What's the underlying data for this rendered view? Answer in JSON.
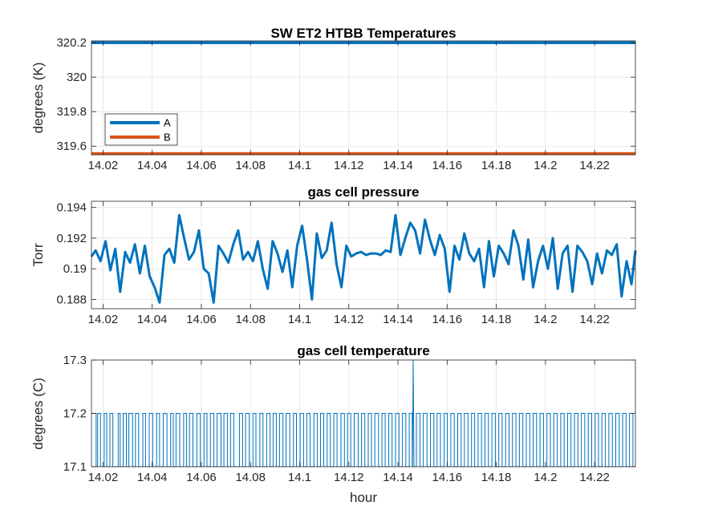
{
  "chart_data": [
    {
      "type": "line",
      "title": "SW ET2 HTBB Temperatures",
      "xlabel": "",
      "ylabel": "degrees (K)",
      "xlim": [
        14.0153,
        14.2366
      ],
      "ylim": [
        319.55,
        320.21
      ],
      "x_ticks": [
        "14.02",
        "14.04",
        "14.06",
        "14.08",
        "14.1",
        "14.12",
        "14.14",
        "14.16",
        "14.18",
        "14.2",
        "14.22"
      ],
      "y_ticks": [
        "319.6",
        "319.8",
        "320",
        "320.2"
      ],
      "grid": true,
      "legend": "bottom-left",
      "series": [
        {
          "name": "A",
          "color": "#0072BD",
          "x": [
            14.0153,
            14.2366
          ],
          "values": [
            320.2,
            320.2
          ]
        },
        {
          "name": "B",
          "color": "#D95319",
          "x": [
            14.0153,
            14.2366
          ],
          "values": [
            319.557,
            319.557
          ]
        }
      ]
    },
    {
      "type": "line",
      "title": "gas cell pressure",
      "xlabel": "",
      "ylabel": "Torr",
      "xlim": [
        14.0153,
        14.2366
      ],
      "ylim": [
        0.1874,
        0.1944
      ],
      "x_ticks": [
        "14.02",
        "14.04",
        "14.06",
        "14.08",
        "14.1",
        "14.12",
        "14.14",
        "14.16",
        "14.18",
        "14.2",
        "14.22"
      ],
      "y_ticks": [
        "0.188",
        "0.19",
        "0.192",
        "0.194"
      ],
      "grid": true,
      "series": [
        {
          "color": "#0072BD",
          "x": [
            14.0153,
            14.017,
            14.019,
            14.021,
            14.023,
            14.025,
            14.027,
            14.029,
            14.031,
            14.033,
            14.035,
            14.037,
            14.039,
            14.041,
            14.043,
            14.045,
            14.047,
            14.049,
            14.051,
            14.053,
            14.055,
            14.057,
            14.059,
            14.061,
            14.063,
            14.065,
            14.067,
            14.069,
            14.071,
            14.073,
            14.075,
            14.077,
            14.079,
            14.081,
            14.083,
            14.085,
            14.087,
            14.089,
            14.091,
            14.093,
            14.095,
            14.097,
            14.099,
            14.101,
            14.103,
            14.105,
            14.107,
            14.109,
            14.111,
            14.113,
            14.115,
            14.117,
            14.119,
            14.121,
            14.123,
            14.125,
            14.127,
            14.129,
            14.131,
            14.133,
            14.135,
            14.137,
            14.139,
            14.141,
            14.143,
            14.145,
            14.147,
            14.149,
            14.151,
            14.153,
            14.155,
            14.157,
            14.159,
            14.161,
            14.163,
            14.165,
            14.167,
            14.169,
            14.171,
            14.173,
            14.175,
            14.177,
            14.179,
            14.181,
            14.183,
            14.185,
            14.187,
            14.189,
            14.191,
            14.193,
            14.195,
            14.197,
            14.199,
            14.201,
            14.203,
            14.205,
            14.207,
            14.209,
            14.211,
            14.213,
            14.215,
            14.217,
            14.219,
            14.221,
            14.223,
            14.225,
            14.227,
            14.229,
            14.231,
            14.233,
            14.235,
            14.2366
          ],
          "values": [
            0.1908,
            0.1912,
            0.1905,
            0.1918,
            0.1899,
            0.1913,
            0.1885,
            0.1911,
            0.1904,
            0.1916,
            0.1897,
            0.1915,
            0.1895,
            0.1888,
            0.1878,
            0.1909,
            0.1913,
            0.1904,
            0.1935,
            0.192,
            0.1906,
            0.1911,
            0.1925,
            0.19,
            0.1897,
            0.1878,
            0.1915,
            0.191,
            0.1904,
            0.1916,
            0.1925,
            0.1906,
            0.1911,
            0.1905,
            0.1918,
            0.19,
            0.1887,
            0.1918,
            0.191,
            0.1898,
            0.1912,
            0.1888,
            0.1915,
            0.1928,
            0.1906,
            0.188,
            0.1923,
            0.1907,
            0.1912,
            0.193,
            0.1903,
            0.1888,
            0.1915,
            0.1908,
            0.191,
            0.1911,
            0.1909,
            0.191,
            0.191,
            0.1909,
            0.1912,
            0.1911,
            0.1935,
            0.1909,
            0.192,
            0.193,
            0.1925,
            0.191,
            0.1932,
            0.1919,
            0.1909,
            0.1922,
            0.1913,
            0.1885,
            0.1915,
            0.1906,
            0.1923,
            0.191,
            0.1905,
            0.1913,
            0.1888,
            0.1918,
            0.1895,
            0.1915,
            0.191,
            0.1903,
            0.1925,
            0.1915,
            0.1893,
            0.1919,
            0.1888,
            0.1905,
            0.1915,
            0.19,
            0.192,
            0.1887,
            0.191,
            0.1915,
            0.1885,
            0.1915,
            0.1911,
            0.1905,
            0.189,
            0.191,
            0.1897,
            0.1912,
            0.1909,
            0.1916,
            0.1882,
            0.1905,
            0.189,
            0.1912
          ]
        }
      ]
    },
    {
      "type": "line",
      "title": "gas cell temperature",
      "xlabel": "hour",
      "ylabel": "degrees (C)",
      "xlim": [
        14.0153,
        14.2366
      ],
      "ylim": [
        17.1,
        17.3
      ],
      "x_ticks": [
        "14.02",
        "14.04",
        "14.06",
        "14.08",
        "14.1",
        "14.12",
        "14.14",
        "14.16",
        "14.18",
        "14.2",
        "14.22"
      ],
      "y_ticks": [
        "17.1",
        "17.2",
        "17.3"
      ],
      "grid": true,
      "series": [
        {
          "color": "#0072BD",
          "levels": [
            17.1,
            17.2
          ],
          "spike": {
            "x": 14.1462,
            "value": 17.3
          },
          "switch_times": [
            14.0172,
            14.0178,
            14.019,
            14.0205,
            14.0215,
            14.0228,
            14.024,
            14.0262,
            14.027,
            14.0282,
            14.0295,
            14.0305,
            14.032,
            14.0332,
            14.0345,
            14.0362,
            14.0373,
            14.0388,
            14.0402,
            14.0418,
            14.043,
            14.0445,
            14.046,
            14.0475,
            14.0486,
            14.0497,
            14.0512,
            14.0528,
            14.054,
            14.0552,
            14.0566,
            14.0582,
            14.0596,
            14.0611,
            14.0623,
            14.0637,
            14.0651,
            14.0664,
            14.068,
            14.0692,
            14.0706,
            14.0719,
            14.0732,
            14.0755,
            14.0768,
            14.078,
            14.0795,
            14.081,
            14.0822,
            14.0838,
            14.0851,
            14.0866,
            14.088,
            14.0892,
            14.0905,
            14.0918,
            14.0932,
            14.0945,
            14.096,
            14.0975,
            14.0987,
            14.1002,
            14.1016,
            14.1029,
            14.1042,
            14.1058,
            14.1072,
            14.1085,
            14.1098,
            14.1112,
            14.1125,
            14.1139,
            14.1152,
            14.1168,
            14.1182,
            14.1195,
            14.1208,
            14.1222,
            14.1238,
            14.1252,
            14.1265,
            14.1279,
            14.1292,
            14.1306,
            14.1321,
            14.1335,
            14.1348,
            14.1362,
            14.1376,
            14.139,
            14.1404,
            14.1418,
            14.1432,
            14.1446,
            14.1458,
            14.1475,
            14.149,
            14.1503,
            14.1518,
            14.1532,
            14.1546,
            14.1559,
            14.1573,
            14.1588,
            14.1601,
            14.1615,
            14.1629,
            14.1643,
            14.1657,
            14.167,
            14.1685,
            14.1699,
            14.1712,
            14.1726,
            14.174,
            14.1754,
            14.1768,
            14.1782,
            14.1796,
            14.181,
            14.1824,
            14.1838,
            14.1852,
            14.1866,
            14.188,
            14.1894,
            14.1908,
            14.1922,
            14.1936,
            14.195,
            14.1964,
            14.1978,
            14.1992,
            14.2006,
            14.202,
            14.2034,
            14.2048,
            14.2062,
            14.2076,
            14.209,
            14.2104,
            14.2118,
            14.2132,
            14.2146,
            14.216,
            14.2174,
            14.2188,
            14.2202,
            14.2216,
            14.223,
            14.2244,
            14.2258,
            14.2272,
            14.2286,
            14.23,
            14.2314,
            14.2328,
            14.2342,
            14.2356
          ]
        }
      ]
    }
  ]
}
